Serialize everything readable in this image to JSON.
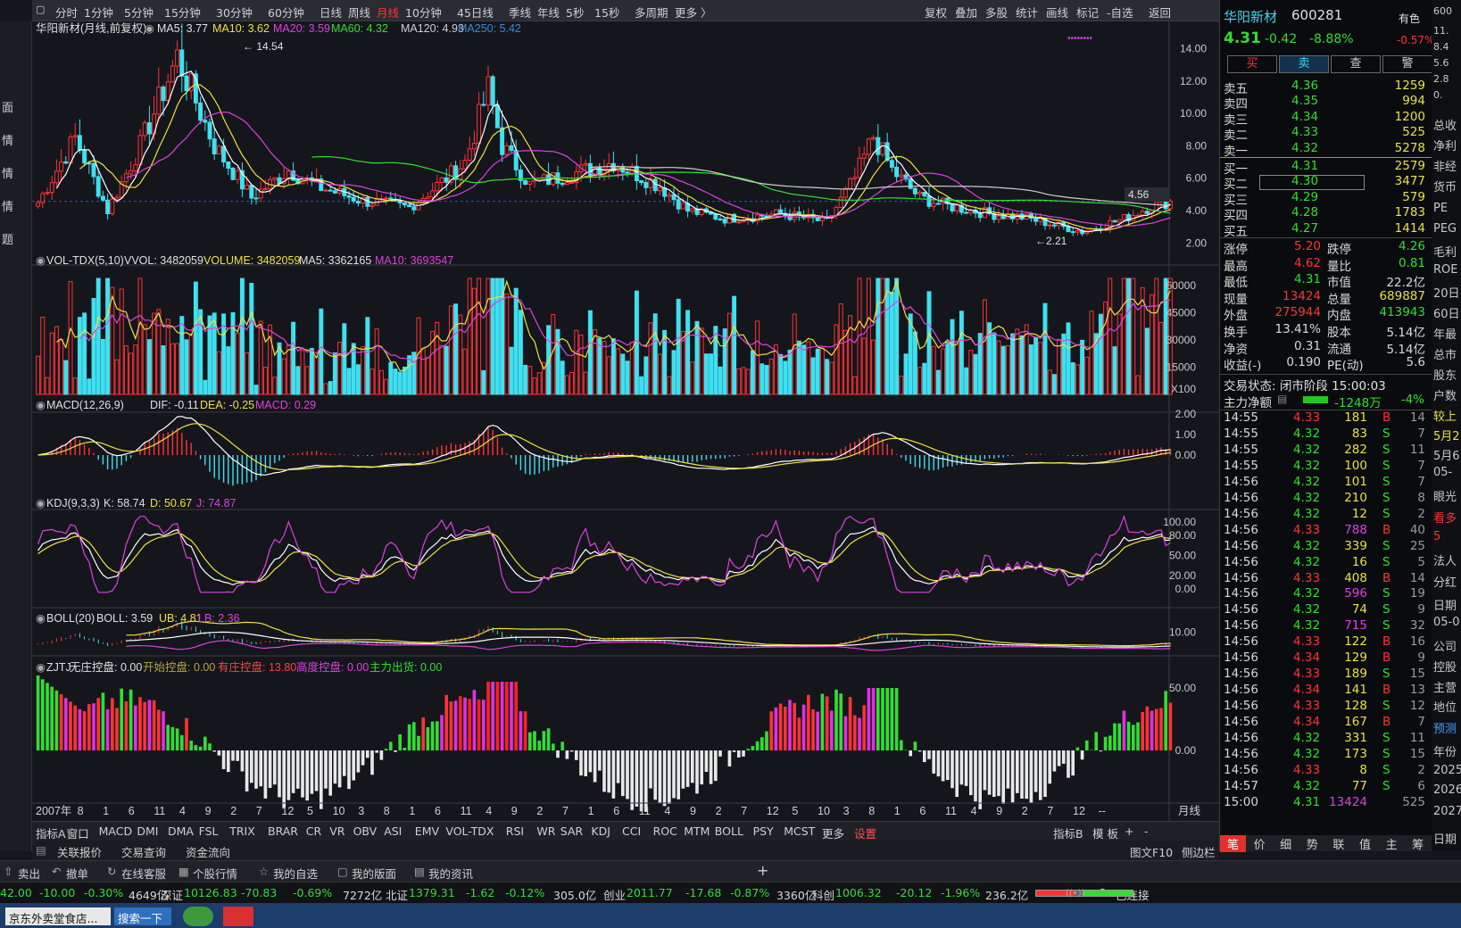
{
  "periods": [
    "分时",
    "1分钟",
    "5分钟",
    "15分钟",
    "30分钟",
    "60分钟",
    "日线",
    "周线",
    "月线",
    "10分钟",
    "45日线",
    "季线",
    "年线",
    "5秒",
    "15秒",
    "多周期",
    "更多 〉"
  ],
  "active_period": "月线",
  "toolbar_right": [
    "复权",
    "叠加",
    "多股",
    "统计",
    "画线",
    "标记",
    "-自选",
    "返回"
  ],
  "stock": {
    "name": "华阳新材",
    "code": "600281",
    "tag": "有色",
    "price": "4.31",
    "change": "-0.42",
    "pct": "-8.88%",
    "tag_pct": "-0.57%"
  },
  "price_pane": {
    "title": "华阳新材(月线,前复权)",
    "ma5": "MA5: 3.77",
    "ma10": "MA10: 3.62",
    "ma20": "MA20: 3.59",
    "ma60": "MA60: 4.32",
    "ma120": "MA120: 4.93",
    "ma250": "MA250: 5.42",
    "high_label": "14.54",
    "low_label": "2.21",
    "current_label": "4.56",
    "yticks": [
      "14.00",
      "12.00",
      "10.00",
      "8.00",
      "6.00",
      "4.00",
      "2.00"
    ]
  },
  "vol_pane": {
    "title": "VOL-TDX(5,10)",
    "vvol": "VVOL: 3482059",
    "volume": "VOLUME: 3482059",
    "ma5": "MA5: 3362165",
    "ma10": "MA10: 3693547",
    "yticks": [
      "60000",
      "45000",
      "30000",
      "15000",
      "X100"
    ]
  },
  "macd_pane": {
    "title": "MACD(12,26,9)",
    "dif": "DIF: -0.11",
    "dea": "DEA: -0.25",
    "macd": "MACD: 0.29",
    "yticks": [
      "2.00",
      "1.00",
      "0.00"
    ]
  },
  "kdj_pane": {
    "title": "KDJ(9,3,3)",
    "k": "K: 58.74",
    "d": "D: 50.67",
    "j": "J: 74.87",
    "yticks": [
      "100.00",
      "80.00",
      "50.00",
      "20.00",
      "0.00"
    ]
  },
  "boll_pane": {
    "title": "BOLL(20)",
    "boll": "BOLL: 3.59",
    "ub": "UB: 4.81",
    "lb": "LB: 2.36",
    "yticks": [
      "10.00"
    ]
  },
  "zjtj_pane": {
    "title": "ZJTJ",
    "a": "无庄控盘: 0.00",
    "b": "开始控盘: 0.00",
    "c": "有庄控盘: 13.80",
    "d": "高度控盘: 0.00",
    "e": "主力出货: 0.00",
    "yticks": [
      "50.00",
      "0.00"
    ]
  },
  "xaxis": [
    "2007年",
    "8",
    "1",
    "6",
    "11",
    "4",
    "9",
    "2",
    "7",
    "12",
    "5",
    "10",
    "3",
    "8",
    "1",
    "6",
    "11",
    "4",
    "9",
    "2",
    "7",
    "1",
    "6",
    "11",
    "4",
    "9",
    "2",
    "7",
    "12",
    "5",
    "10",
    "3",
    "8",
    "1",
    "6",
    "11",
    "4",
    "9",
    "2",
    "7",
    "12",
    "--"
  ],
  "xaxis_right": "月线",
  "indicator_tabs": [
    "指标A",
    "窗口",
    "MACD",
    "DMI",
    "DMA",
    "FSL",
    "TRIX",
    "BRAR",
    "CR",
    "VR",
    "OBV",
    "ASI",
    "EMV",
    "VOL-TDX",
    "RSI",
    "WR",
    "SAR",
    "KDJ",
    "CCI",
    "ROC",
    "MTM",
    "BOLL",
    "PSY",
    "MCST",
    "更多",
    "设置"
  ],
  "indicator_tabs_right": [
    "指标B",
    "模 板",
    "+",
    "-"
  ],
  "link_tabs": [
    "关联报价",
    "交易查询",
    "资金流向"
  ],
  "link_right": [
    "图文F10",
    "侧边栏"
  ],
  "trade_buttons": [
    "买",
    "卖",
    "查",
    "警"
  ],
  "asks": [
    [
      "卖五",
      "4.36",
      "1259"
    ],
    [
      "卖四",
      "4.35",
      "994"
    ],
    [
      "卖三",
      "4.34",
      "1200"
    ],
    [
      "卖二",
      "4.33",
      "525"
    ],
    [
      "卖一",
      "4.32",
      "5278"
    ]
  ],
  "bids": [
    [
      "买一",
      "4.31",
      "2579"
    ],
    [
      "买二",
      "4.30",
      "3477"
    ],
    [
      "买三",
      "4.29",
      "579"
    ],
    [
      "买四",
      "4.28",
      "1783"
    ],
    [
      "买五",
      "4.27",
      "1414"
    ]
  ],
  "stats": [
    [
      "涨停",
      "5.20",
      "跌停",
      "4.26"
    ],
    [
      "最高",
      "4.62",
      "量比",
      "0.81"
    ],
    [
      "最低",
      "4.31",
      "市值",
      "22.2亿"
    ],
    [
      "现量",
      "13424",
      "总量",
      "689887"
    ],
    [
      "外盘",
      "275944",
      "内盘",
      "413943"
    ],
    [
      "换手",
      "13.41%",
      "股本",
      "5.14亿"
    ],
    [
      "净资",
      "0.31",
      "流通",
      "5.14亿"
    ],
    [
      "收益(-)",
      "0.190",
      "PE(动)",
      "5.6"
    ]
  ],
  "trade_status": "交易状态: 闭市阶段 15:00:03",
  "main_flow": {
    "label": "主力净额",
    "value": "-1248万",
    "pct": "-4%"
  },
  "ticks": [
    [
      "14:55",
      "4.33",
      "181",
      "B",
      "14"
    ],
    [
      "14:55",
      "4.32",
      "83",
      "S",
      "7"
    ],
    [
      "14:55",
      "4.32",
      "282",
      "S",
      "11"
    ],
    [
      "14:55",
      "4.32",
      "100",
      "S",
      "7"
    ],
    [
      "14:56",
      "4.32",
      "101",
      "S",
      "7"
    ],
    [
      "14:56",
      "4.32",
      "210",
      "S",
      "8"
    ],
    [
      "14:56",
      "4.32",
      "12",
      "S",
      "2"
    ],
    [
      "14:56",
      "4.33",
      "788",
      "B",
      "40"
    ],
    [
      "14:56",
      "4.32",
      "339",
      "S",
      "25"
    ],
    [
      "14:56",
      "4.32",
      "16",
      "S",
      "5"
    ],
    [
      "14:56",
      "4.33",
      "408",
      "B",
      "14"
    ],
    [
      "14:56",
      "4.32",
      "596",
      "S",
      "19"
    ],
    [
      "14:56",
      "4.32",
      "74",
      "S",
      "9"
    ],
    [
      "14:56",
      "4.32",
      "715",
      "S",
      "32"
    ],
    [
      "14:56",
      "4.33",
      "122",
      "B",
      "16"
    ],
    [
      "14:56",
      "4.34",
      "129",
      "B",
      "9"
    ],
    [
      "14:56",
      "4.33",
      "189",
      "S",
      "15"
    ],
    [
      "14:56",
      "4.34",
      "141",
      "B",
      "13"
    ],
    [
      "14:56",
      "4.33",
      "128",
      "S",
      "12"
    ],
    [
      "14:56",
      "4.34",
      "167",
      "B",
      "7"
    ],
    [
      "14:56",
      "4.32",
      "331",
      "S",
      "11"
    ],
    [
      "14:56",
      "4.32",
      "173",
      "S",
      "15"
    ],
    [
      "14:56",
      "4.33",
      "8",
      "S",
      "2"
    ],
    [
      "14:57",
      "4.32",
      "77",
      "S",
      "6"
    ],
    [
      "15:00",
      "4.31",
      "13424",
      "",
      "525"
    ]
  ],
  "bottom_right_tabs": [
    "笔",
    "价",
    "细",
    "势",
    "联",
    "值",
    "主",
    "筹"
  ],
  "far_right": [
    "600",
    "11.",
    "8.4",
    "5.6",
    "2.8",
    "0.",
    "总收",
    "净利",
    "非经",
    "货币",
    "PE",
    "PEG",
    "毛利",
    "ROE",
    "20日",
    "60日",
    "年最",
    "总市",
    "股东",
    "户数",
    "较上",
    "5月2",
    "5月6",
    "05-",
    "眼光",
    "看多",
    "5",
    "法人",
    "分红",
    "日期",
    "05-0",
    "公司",
    "控股",
    "主营",
    "地位",
    "预测",
    "年份",
    "2025",
    "2026",
    "2027",
    "日期"
  ],
  "left_strip": [
    "面",
    "情",
    "情",
    "情",
    "题"
  ],
  "tool_row": [
    "卖出",
    "撤单",
    "在线客服",
    "个股行情",
    "我的自选",
    "我的版面",
    "我的资讯",
    "+"
  ],
  "status": {
    "idx1": "42.00",
    "idx1b": "-10.00",
    "idx1c": "-0.30%",
    "idx1d": "4649亿",
    "sz_name": "深证",
    "sz": "10126.83",
    "sz_c": "-70.83",
    "sz_p": "-0.69%",
    "sz_v": "7272亿",
    "bz_name": "北证",
    "bz": "1379.31",
    "bz_c": "-1.62",
    "bz_p": "-0.12%",
    "bz_v": "305.0亿",
    "cy_name": "创业",
    "cy": "2011.77",
    "cy_c": "-17.68",
    "cy_p": "-0.87%",
    "cy_v": "3360亿",
    "kc_name": "科创",
    "kc": "1006.32",
    "kc_c": "-20.12",
    "kc_p": "-1.96%",
    "kc_v": "236.2亿",
    "conn": "已连接"
  },
  "taskbar": {
    "item1": "京东外卖堂食店...",
    "search": "搜索一下"
  },
  "colors": {
    "up": "#ff3333",
    "down": "#3fe0f0",
    "ma5": "#ffffff",
    "ma10": "#f0e040",
    "ma20": "#e040e0",
    "ma60": "#33dd33",
    "ma120": "#cfcfcf",
    "ma250": "#3a8ad8",
    "bg": "#14161c"
  }
}
